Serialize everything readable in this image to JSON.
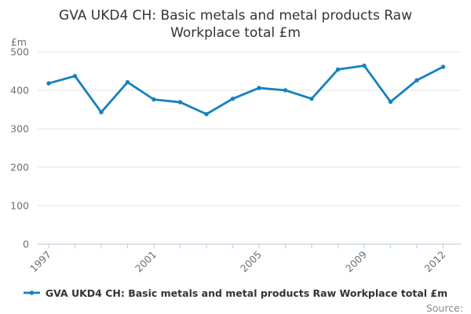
{
  "chart": {
    "title": "GVA UKD4 CH: Basic metals and metal products Raw Workplace total £m",
    "legend_label": "GVA UKD4 CH: Basic metals and metal products Raw Workplace total £m",
    "source_label": "Source:",
    "y_axis_unit": "£m"
  },
  "chart_data": {
    "type": "line",
    "title": "GVA UKD4 CH: Basic metals and metal products Raw Workplace total £m",
    "categories": [
      "1997",
      "1998",
      "1999",
      "2000",
      "2001",
      "2002",
      "2003",
      "2004",
      "2005",
      "2006",
      "2007",
      "2008",
      "2009",
      "2010",
      "2011",
      "2012"
    ],
    "series": [
      {
        "name": "GVA UKD4 CH: Basic metals and metal products Raw Workplace total £m",
        "values": [
          418,
          437,
          343,
          421,
          376,
          369,
          338,
          378,
          406,
          400,
          378,
          454,
          464,
          370,
          426,
          461
        ]
      }
    ],
    "xlabel": "",
    "ylabel": "£m",
    "ylim": [
      0,
      500
    ],
    "yticks": [
      0,
      100,
      200,
      300,
      400,
      500
    ],
    "visible_x_labels": [
      "1997",
      "2001",
      "2005",
      "2009",
      "2012"
    ],
    "grid": true,
    "legend_position": "bottom",
    "colors": {
      "line": "#1581BD",
      "grid": "#E6E6E6",
      "axis": "#C4D3E2",
      "tick_label": "#6E6E6E",
      "title": "#333333",
      "legend_text": "#333333",
      "source": "#8A8A8A"
    }
  }
}
